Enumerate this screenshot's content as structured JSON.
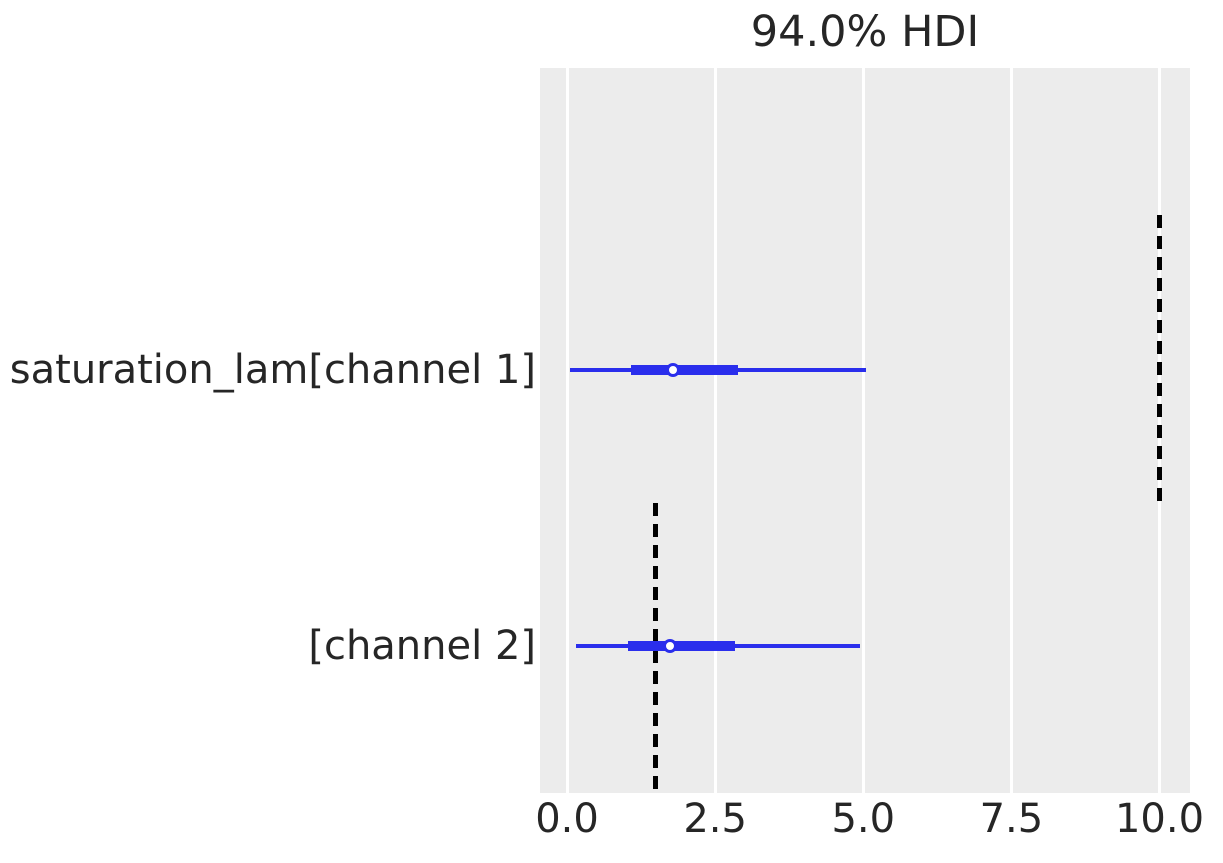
{
  "chart_data": {
    "type": "forest",
    "title": "94.0% HDI",
    "hdi_probability": "94.0%",
    "legend": "none",
    "grid": "vertical-white-on-gray",
    "xlim": [
      -0.45,
      10.55
    ],
    "x_ticks": [
      0.0,
      2.5,
      5.0,
      7.5,
      10.0
    ],
    "x_tick_labels": [
      "0.0",
      "2.5",
      "5.0",
      "7.5",
      "10.0"
    ],
    "rows": [
      {
        "label": "saturation_lam[channel 1]",
        "hdi": [
          0.05,
          5.04
        ],
        "quartile": [
          1.08,
          2.89
        ],
        "median": 1.79,
        "reference_value": 10.0
      },
      {
        "label": "[channel 2]",
        "hdi": [
          0.16,
          4.95
        ],
        "quartile": [
          1.03,
          2.83
        ],
        "median": 1.74,
        "reference_value": 1.5
      }
    ],
    "colors": {
      "interval": "#2a2eec",
      "marker_face": "#ffffff",
      "reference_line": "#000000",
      "plot_background": "#ececec",
      "gridline": "#ffffff",
      "text": "#262626"
    }
  }
}
